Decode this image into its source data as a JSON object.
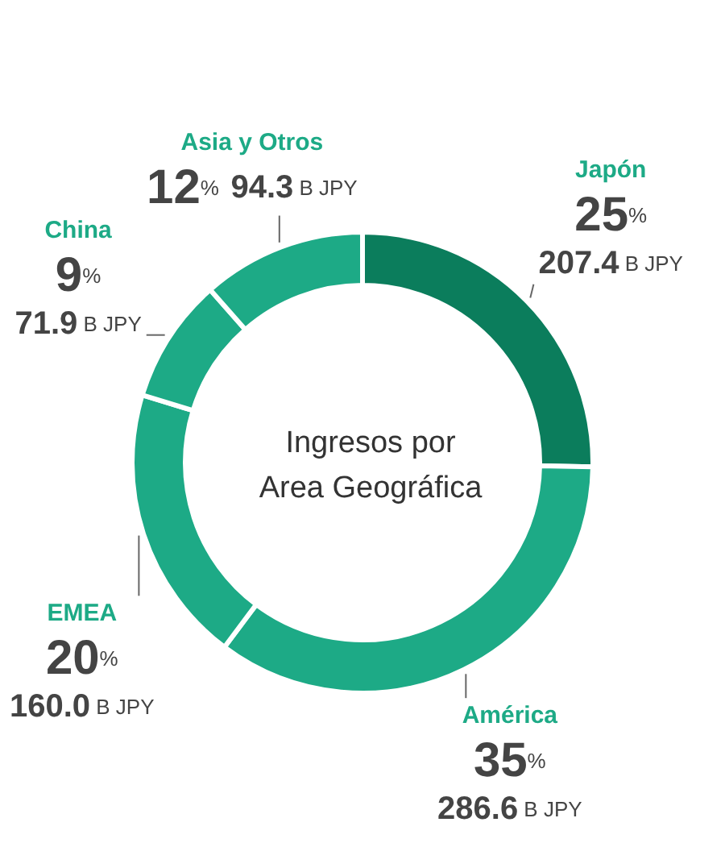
{
  "chart_data": {
    "type": "donut",
    "title": "Ingresos por\nArea Geográfica",
    "categories": [
      "Japón",
      "América",
      "EMEA",
      "China",
      "Asia y Otros"
    ],
    "values": [
      207.4,
      286.6,
      160.0,
      71.9,
      94.3
    ],
    "colors": [
      "#0b7d5c",
      "#1daa86",
      "#1daa86",
      "#1daa86",
      "#1daa86"
    ],
    "value_labels": [
      "25% 207.4 B JPY",
      "35% 286.6 B JPY",
      "20% 160.0 B JPY",
      "9% 71.9 B JPY",
      "12% 94.3 B JPY"
    ],
    "legend": false
  }
}
